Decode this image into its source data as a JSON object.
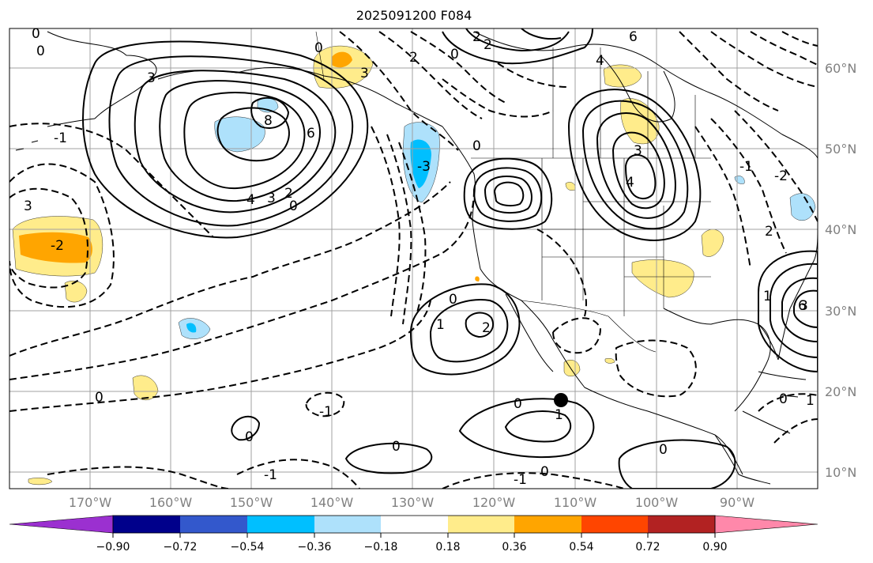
{
  "title": "2025091200 F084",
  "lat_labels": [
    "60°N",
    "50°N",
    "40°N",
    "30°N",
    "20°N",
    "10°N"
  ],
  "lon_labels": [
    "170°W",
    "160°W",
    "150°W",
    "140°W",
    "130°W",
    "120°W",
    "110°W",
    "100°W",
    "90°W"
  ],
  "colorbar": {
    "tick_labels": [
      "−0.90",
      "−0.72",
      "−0.54",
      "−0.36",
      "−0.18",
      "0.18",
      "0.36",
      "0.54",
      "0.72",
      "0.90"
    ],
    "colors": [
      "#9b30d0",
      "#00008b",
      "#3358cc",
      "#00bfff",
      "#aee1fb",
      "#ffffff",
      "#ffec8b",
      "#ffa500",
      "#ff4500",
      "#b22222",
      "#ff88aa"
    ]
  },
  "fill_colors": {
    "light_blue": "#aee1fb",
    "deep_sky_blue": "#00bfff",
    "light_yellow": "#ffec8b",
    "orange": "#ffa500"
  },
  "contour_labels": [
    "0",
    "0",
    "0",
    "0",
    "0",
    "0",
    "0",
    "0",
    "0",
    "0",
    "0",
    "0",
    "0",
    "0",
    "1",
    "1",
    "1",
    "1",
    "2",
    "2",
    "2",
    "2",
    "2",
    "2",
    "3",
    "3",
    "3",
    "3",
    "3",
    "3",
    "4",
    "4",
    "4",
    "6",
    "6",
    "6",
    "8",
    "-1",
    "-1",
    "-1",
    "-1",
    "-1",
    "-2",
    "-2",
    "-3"
  ],
  "marker": "filled-circle"
}
